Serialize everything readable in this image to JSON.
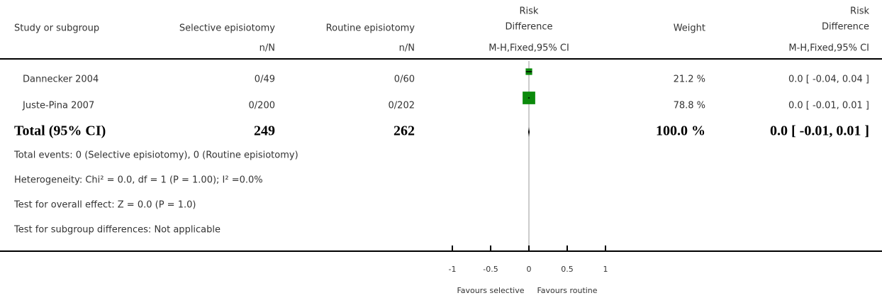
{
  "chart_data": {
    "type": "forest",
    "headers": {
      "study": "Study or subgroup",
      "group1": "Selective episiotomy",
      "group2": "Routine episiotomy",
      "plot": [
        "Risk",
        "Difference"
      ],
      "weight": "Weight",
      "result": [
        "Risk",
        "Difference"
      ],
      "group1_sub": "n/N",
      "group2_sub": "n/N",
      "plot_sub": "M-H,Fixed,95% CI",
      "result_sub": "M-H,Fixed,95% CI"
    },
    "marker_color": "#0b8a0b",
    "studies": [
      {
        "name": "Dannecker 2004",
        "group1": "0/49",
        "group2": "0/60",
        "weight": 21.2,
        "weight_label": "21.2 %",
        "estimate": 0,
        "ci_low": -0.04,
        "ci_high": 0.04,
        "result": "0.0 [ -0.04, 0.04 ]"
      },
      {
        "name": "Juste-Pina 2007",
        "group1": "0/200",
        "group2": "0/202",
        "weight": 78.8,
        "weight_label": "78.8 %",
        "estimate": 0,
        "ci_low": -0.01,
        "ci_high": 0.01,
        "result": "0.0 [ -0.01, 0.01 ]"
      }
    ],
    "total": {
      "name": "Total (95% CI)",
      "group1": 249,
      "group2": 262,
      "weight": 100.0,
      "weight_label": "100.0 %",
      "estimate": 0,
      "ci_low": -0.01,
      "ci_high": 0.01,
      "result": "0.0 [ -0.01, 0.01 ]"
    },
    "notes": [
      "Total events: 0 (Selective episiotomy), 0 (Routine episiotomy)",
      "Heterogeneity: Chi² = 0.0, df = 1 (P = 1.00); I² =0.0%",
      "Test for overall effect: Z = 0.0 (P = 1.0)",
      "Test for subgroup differences: Not applicable"
    ],
    "xlim": [
      -1,
      1
    ],
    "xticks": [
      -1,
      -0.5,
      0,
      0.5,
      1
    ],
    "favours_left": "Favours selective",
    "favours_right": "Favours routine"
  }
}
